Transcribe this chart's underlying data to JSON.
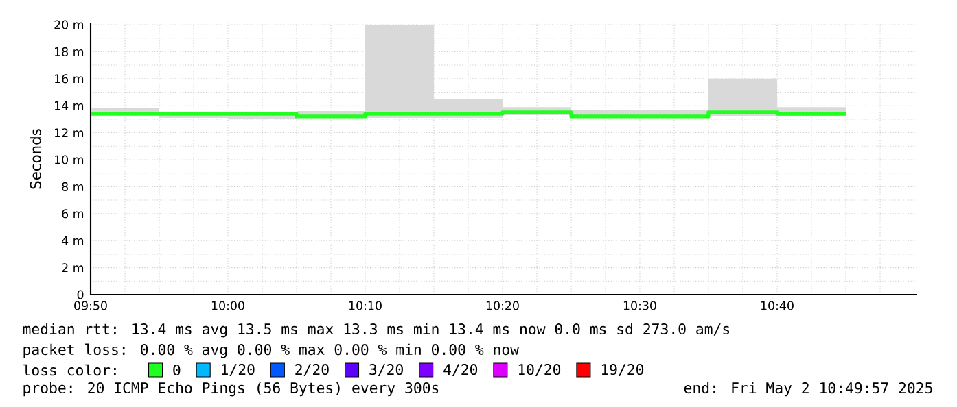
{
  "chart_data": {
    "type": "step",
    "ylabel": "Seconds",
    "x": [
      9.8333,
      9.9167,
      10.0,
      10.0833,
      10.1667,
      10.25,
      10.3333,
      10.4167,
      10.5,
      10.5833,
      10.6667,
      10.75
    ],
    "series": [
      {
        "name": "0",
        "color": "#20ff20",
        "values": [
          13.4,
          13.4,
          13.4,
          13.2,
          13.4,
          13.4,
          13.5,
          13.2,
          13.2,
          13.5,
          13.4,
          13.4
        ],
        "lower": [
          13.3,
          13.1,
          13.0,
          13.1,
          13.1,
          13.1,
          13.3,
          13.1,
          13.1,
          13.2,
          13.2,
          13.2
        ],
        "upper": [
          13.8,
          13.55,
          13.5,
          13.6,
          20.0,
          14.5,
          13.9,
          13.7,
          13.7,
          16.0,
          13.9,
          13.9
        ]
      },
      {
        "name": "1/20",
        "color": "#00b8ff",
        "values": [
          null,
          null,
          null,
          null,
          null,
          null,
          null,
          null,
          null,
          null,
          null,
          null
        ]
      },
      {
        "name": "2/20",
        "color": "#0059ff",
        "values": [
          null,
          null,
          null,
          null,
          null,
          null,
          null,
          null,
          null,
          null,
          null,
          null
        ]
      },
      {
        "name": "3/20",
        "color": "#5e00ff",
        "values": [
          null,
          null,
          null,
          null,
          null,
          null,
          null,
          null,
          null,
          null,
          null,
          null
        ]
      },
      {
        "name": "4/20",
        "color": "#7e00ff",
        "values": [
          null,
          null,
          null,
          null,
          null,
          null,
          null,
          null,
          null,
          null,
          null,
          null
        ]
      },
      {
        "name": "10/20",
        "color": "#dd00ff",
        "values": [
          null,
          null,
          null,
          null,
          null,
          null,
          null,
          null,
          null,
          null,
          null,
          null
        ]
      },
      {
        "name": "19/20",
        "color": "#ff0000",
        "values": [
          null,
          null,
          null,
          null,
          null,
          null,
          null,
          null,
          null,
          null,
          null,
          null
        ]
      }
    ],
    "legend_title": "loss color:",
    "legend": "bottom",
    "grid": true,
    "xlim": [
      9.8333,
      10.8367
    ],
    "xticks": [
      {
        "value": 9.8333,
        "label": "09:50"
      },
      {
        "value": 9.875,
        "label": null
      },
      {
        "value": 9.9167,
        "label": null
      },
      {
        "value": 9.9583,
        "label": null
      },
      {
        "value": 10.0,
        "label": "10:00"
      },
      {
        "value": 10.0417,
        "label": null
      },
      {
        "value": 10.0833,
        "label": null
      },
      {
        "value": 10.125,
        "label": null
      },
      {
        "value": 10.1667,
        "label": "10:10"
      },
      {
        "value": 10.2083,
        "label": null
      },
      {
        "value": 10.25,
        "label": null
      },
      {
        "value": 10.2917,
        "label": null
      },
      {
        "value": 10.3333,
        "label": "10:20"
      },
      {
        "value": 10.375,
        "label": null
      },
      {
        "value": 10.4167,
        "label": null
      },
      {
        "value": 10.4583,
        "label": null
      },
      {
        "value": 10.5,
        "label": "10:30"
      },
      {
        "value": 10.5417,
        "label": null
      },
      {
        "value": 10.5833,
        "label": null
      },
      {
        "value": 10.625,
        "label": null
      },
      {
        "value": 10.6667,
        "label": "10:40"
      },
      {
        "value": 10.7083,
        "label": null
      },
      {
        "value": 10.75,
        "label": null
      },
      {
        "value": 10.7917,
        "label": null
      }
    ],
    "ylim": [
      0,
      20.1
    ],
    "yticks": [
      {
        "value": 0,
        "label": "0"
      },
      {
        "value": 1,
        "label": null
      },
      {
        "value": 2,
        "label": "2 m"
      },
      {
        "value": 3,
        "label": null
      },
      {
        "value": 4,
        "label": "4 m"
      },
      {
        "value": 5,
        "label": null
      },
      {
        "value": 6,
        "label": "6 m"
      },
      {
        "value": 7,
        "label": null
      },
      {
        "value": 8,
        "label": "8 m"
      },
      {
        "value": 9,
        "label": null
      },
      {
        "value": 10,
        "label": "10 m"
      },
      {
        "value": 11,
        "label": null
      },
      {
        "value": 12,
        "label": "12 m"
      },
      {
        "value": 13,
        "label": null
      },
      {
        "value": 14,
        "label": "14 m"
      },
      {
        "value": 15,
        "label": null
      },
      {
        "value": 16,
        "label": "16 m"
      },
      {
        "value": 17,
        "label": null
      },
      {
        "value": 18,
        "label": "18 m"
      },
      {
        "value": 19,
        "label": null
      },
      {
        "value": 20,
        "label": "20 m"
      }
    ],
    "annotations": [
      "median rtt:  13.4 ms avg  13.5 ms max  13.3 ms min  13.4 ms now  0.0 ms sd  273.0   am/s",
      "packet loss: 0.00 % avg  0.00 % max  0.00 % min  0.00 % now",
      "probe:       20 ICMP Echo Pings (56 Bytes) every 300s",
      "end: Fri May  2 10:49:57 2025"
    ]
  }
}
